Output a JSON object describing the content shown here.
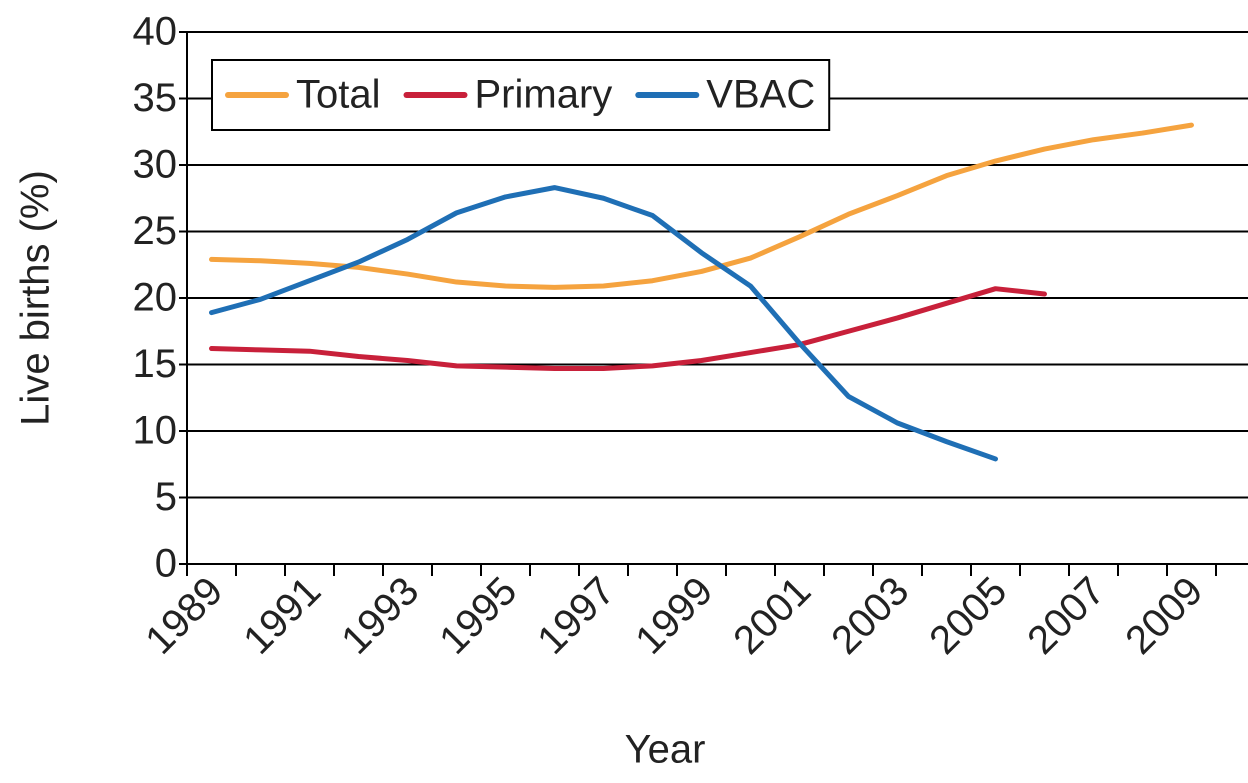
{
  "chart_data": {
    "type": "line",
    "x_label": "Year",
    "y_label": "Live births (%)",
    "categories": [
      "1989",
      null,
      "1991",
      null,
      "1993",
      null,
      "1995",
      null,
      "1997",
      null,
      "1999",
      null,
      "2001",
      null,
      "2003",
      null,
      "2005",
      null,
      "2007",
      null,
      "2009"
    ],
    "series": [
      {
        "name": "Total",
        "color": "#f5a33f",
        "values": [
          22.9,
          22.8,
          22.6,
          22.3,
          21.8,
          21.2,
          20.9,
          20.8,
          20.9,
          21.3,
          22.0,
          23.0,
          24.6,
          26.3,
          27.7,
          29.2,
          30.3,
          31.2,
          31.9,
          32.4,
          33.0
        ]
      },
      {
        "name": "Primary",
        "color": "#c8203a",
        "values": [
          16.2,
          16.1,
          16.0,
          15.6,
          15.3,
          14.9,
          14.8,
          14.7,
          14.7,
          14.9,
          15.3,
          15.9,
          16.5,
          17.5,
          18.5,
          19.6,
          20.7,
          20.3,
          null,
          null,
          null
        ]
      },
      {
        "name": "VBAC",
        "color": "#1f6fb5",
        "values": [
          18.9,
          19.9,
          21.3,
          22.7,
          24.4,
          26.4,
          27.6,
          28.3,
          27.5,
          26.2,
          23.4,
          20.9,
          16.6,
          12.6,
          10.6,
          9.2,
          7.9,
          null,
          null,
          null,
          null
        ]
      }
    ],
    "ylim": [
      0,
      40
    ],
    "yticks": [
      0,
      5,
      10,
      15,
      20,
      25,
      30,
      35,
      40
    ],
    "grid": true,
    "legend": "top-left"
  }
}
